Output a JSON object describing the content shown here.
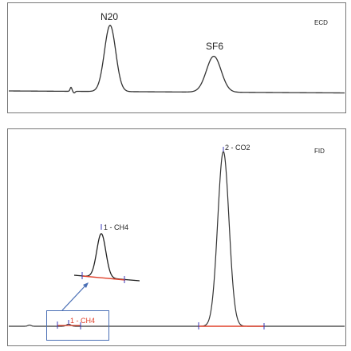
{
  "chart_data": [
    {
      "type": "line",
      "panel_label": "ECD",
      "peaks": [
        {
          "name": "N20"
        },
        {
          "name": "SF6"
        }
      ]
    },
    {
      "type": "line",
      "panel_label": "FID",
      "peaks": [
        {
          "name": "1 - CH4"
        },
        {
          "name": "2 - CO2"
        }
      ],
      "inset_label": "1 - CH4",
      "colors": {
        "baseline": "#e0402a",
        "trace": "#222222",
        "marker": "#3a3ab8",
        "callout": "#4a6fb5"
      }
    }
  ]
}
